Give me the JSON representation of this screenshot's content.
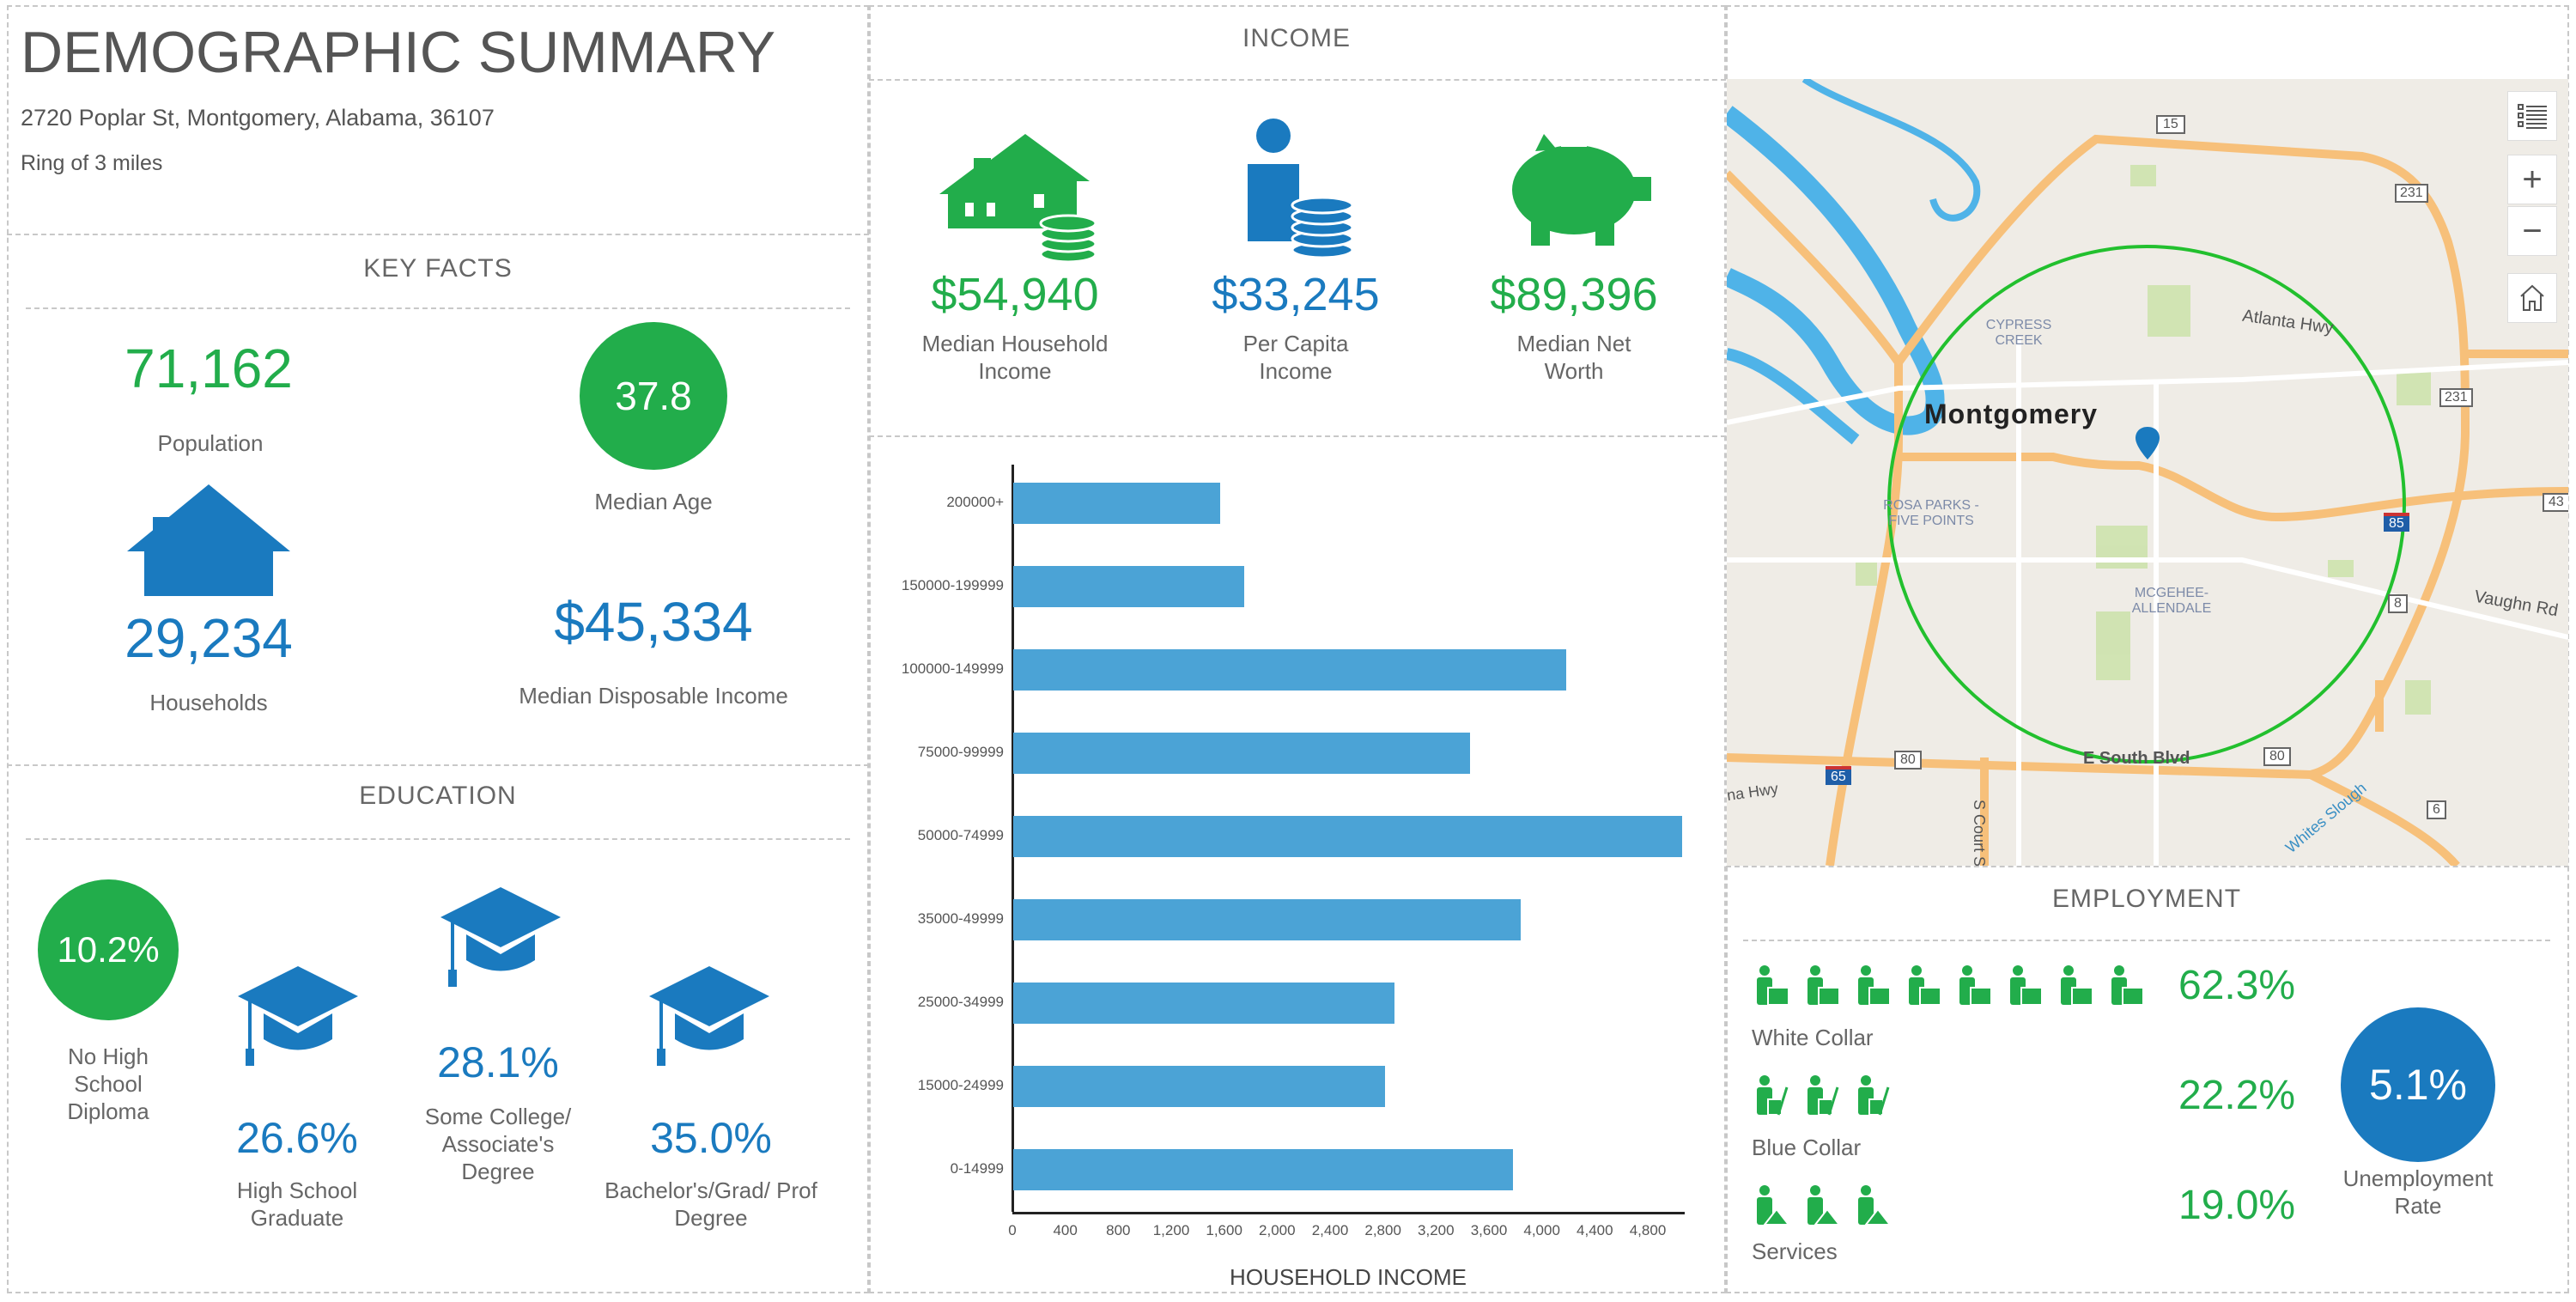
{
  "header": {
    "title": "DEMOGRAPHIC SUMMARY",
    "address": "2720 Poplar St, Montgomery, Alabama, 36107",
    "ring": "Ring of 3 miles"
  },
  "key_facts": {
    "title": "KEY FACTS",
    "population": {
      "value": "71,162",
      "label": "Population"
    },
    "median_age": {
      "value": "37.8",
      "label": "Median Age"
    },
    "households": {
      "value": "29,234",
      "label": "Households"
    },
    "median_disposable_income": {
      "value": "$45,334",
      "label": "Median Disposable Income"
    }
  },
  "education": {
    "title": "EDUCATION",
    "items": [
      {
        "value": "10.2%",
        "label_lines": [
          "No High",
          "School",
          "Diploma"
        ]
      },
      {
        "value": "26.6%",
        "label_lines": [
          "High School",
          "Graduate"
        ]
      },
      {
        "value": "28.1%",
        "label_lines": [
          "Some College/",
          "Associate's",
          "Degree"
        ]
      },
      {
        "value": "35.0%",
        "label_lines": [
          "Bachelor's/Grad/ Prof",
          "Degree"
        ]
      }
    ]
  },
  "income": {
    "title": "INCOME",
    "items": [
      {
        "value": "$54,940",
        "label_lines": [
          "Median Household",
          "Income"
        ],
        "icon": "house-coins-icon"
      },
      {
        "value": "$33,245",
        "label_lines": [
          "Per Capita",
          "Income"
        ],
        "icon": "person-coins-icon"
      },
      {
        "value": "$89,396",
        "label_lines": [
          "Median Net",
          "Worth"
        ],
        "icon": "piggy-bank-icon"
      }
    ]
  },
  "chart_data": {
    "type": "bar",
    "orientation": "horizontal",
    "title": "",
    "xlabel": "HOUSEHOLD INCOME",
    "ylabel": "",
    "categories": [
      "200000+",
      "150000-199999",
      "100000-149999",
      "75000-99999",
      "50000-74999",
      "35000-49999",
      "25000-34999",
      "15000-24999",
      "0-14999"
    ],
    "values": [
      1560,
      1745,
      4180,
      3450,
      5055,
      3835,
      2880,
      2810,
      3775
    ],
    "xticks": [
      "0",
      "400",
      "800",
      "1,200",
      "1,600",
      "2,000",
      "2,400",
      "2,800",
      "3,200",
      "3,600",
      "4,000",
      "4,400",
      "4,800"
    ],
    "xlim": [
      0,
      5080
    ],
    "grid": false,
    "color": "#4ba3d6"
  },
  "map": {
    "labels": {
      "city": "Montgomery",
      "n1": "CYPRESS",
      "n1b": "CREEK",
      "n2": "ROSA PARKS -",
      "n2b": "FIVE POINTS",
      "n3": "MCGEHEE-",
      "n3b": "ALLENDALE",
      "r1": "Atlanta Hwy",
      "r2": "E South Blvd",
      "r3": "Vaughn Rd",
      "r4": "S Court St",
      "r5": "Whites Slough",
      "r6": "na Hwy",
      "s15": "15",
      "s231a": "231",
      "s231b": "231",
      "s85": "85",
      "s65": "65",
      "s80a": "80",
      "s80b": "80",
      "s8": "8",
      "s6": "6",
      "s43": "43"
    },
    "controls": {
      "legend": "legend-icon",
      "zoom_in": "+",
      "zoom_out": "−",
      "home": "home-icon"
    },
    "ring_color": "#22c02e"
  },
  "employment": {
    "title": "EMPLOYMENT",
    "rows": [
      {
        "value": "62.3%",
        "label": "White Collar",
        "icons": 8
      },
      {
        "value": "22.2%",
        "label": "Blue Collar",
        "icons": 3
      },
      {
        "value": "19.0%",
        "label": "Services",
        "icons": 3
      }
    ],
    "unemployment": {
      "value": "5.1%",
      "label_lines": [
        "Unemployment",
        "Rate"
      ]
    }
  },
  "colors": {
    "green": "#22ad4b",
    "blue": "#1a7abf"
  }
}
